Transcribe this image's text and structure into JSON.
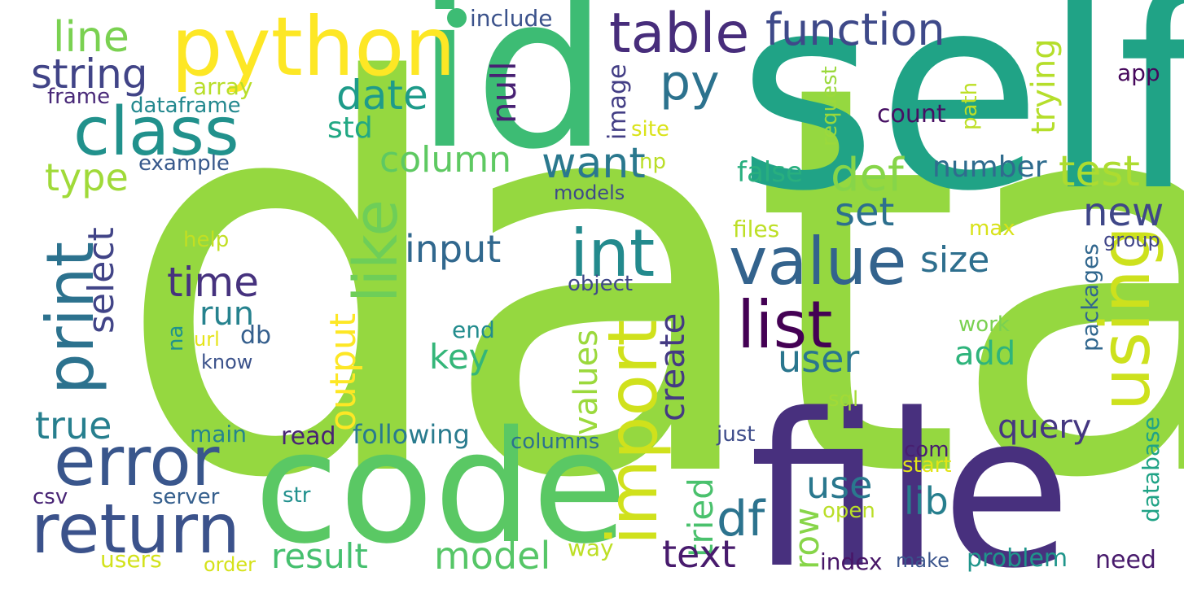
{
  "cloud": {
    "words": [
      {
        "text": "data",
        "color": "#95d840"
      },
      {
        "text": "self",
        "color": "#20a386"
      },
      {
        "text": "file",
        "color": "#48307e"
      },
      {
        "text": "code",
        "color": "#5ac864"
      },
      {
        "text": "id",
        "color": "#3dbc74"
      },
      {
        "text": "python",
        "color": "#fde725"
      },
      {
        "text": "class",
        "color": "#21918c"
      },
      {
        "text": "error",
        "color": "#39568c"
      },
      {
        "text": "return",
        "color": "#3b528b"
      },
      {
        "text": "print",
        "color": "#2c728e"
      },
      {
        "text": "import",
        "color": "#d0e11c"
      },
      {
        "text": "using",
        "color": "#cde11d"
      },
      {
        "text": "value",
        "color": "#33638d"
      },
      {
        "text": "list",
        "color": "#440154"
      },
      {
        "text": "int",
        "color": "#238a8d"
      },
      {
        "text": "like",
        "color": "#6ece58"
      },
      {
        "text": "table",
        "color": "#472d7b"
      },
      {
        "text": "function",
        "color": "#3e4989"
      },
      {
        "text": "line",
        "color": "#7ad151"
      },
      {
        "text": "string",
        "color": "#414487"
      },
      {
        "text": "py",
        "color": "#2c728e"
      },
      {
        "text": "date",
        "color": "#1e9b8a"
      },
      {
        "text": "null",
        "color": "#482173"
      },
      {
        "text": "std",
        "color": "#22a884"
      },
      {
        "text": "type",
        "color": "#a0da39"
      },
      {
        "text": "column",
        "color": "#5ec962"
      },
      {
        "text": "want",
        "color": "#2a788e"
      },
      {
        "text": "def",
        "color": "#86d549"
      },
      {
        "text": "test",
        "color": "#addc30"
      },
      {
        "text": "number",
        "color": "#2f6c8e"
      },
      {
        "text": "trying",
        "color": "#b5de2b"
      },
      {
        "text": "false",
        "color": "#29af7f"
      },
      {
        "text": "set",
        "color": "#2d708e"
      },
      {
        "text": "new",
        "color": "#3f4788"
      },
      {
        "text": "input",
        "color": "#31688e"
      },
      {
        "text": "select",
        "color": "#414487"
      },
      {
        "text": "time",
        "color": "#46327e"
      },
      {
        "text": "run",
        "color": "#26828e"
      },
      {
        "text": "output",
        "color": "#fde725"
      },
      {
        "text": "values",
        "color": "#9bd93c"
      },
      {
        "text": "create",
        "color": "#443a83"
      },
      {
        "text": "size",
        "color": "#2e6f8e"
      },
      {
        "text": "user",
        "color": "#2a768e"
      },
      {
        "text": "key",
        "color": "#34b679"
      },
      {
        "text": "add",
        "color": "#2fb47c"
      },
      {
        "text": "true",
        "color": "#277f8e"
      },
      {
        "text": "query",
        "color": "#453781"
      },
      {
        "text": "tried",
        "color": "#4ac16d"
      },
      {
        "text": "df",
        "color": "#2c738e"
      },
      {
        "text": "row",
        "color": "#87d549"
      },
      {
        "text": "use",
        "color": "#2a788e"
      },
      {
        "text": "lib",
        "color": "#277f8e"
      },
      {
        "text": "result",
        "color": "#46c06f"
      },
      {
        "text": "model",
        "color": "#56c667"
      },
      {
        "text": "text",
        "color": "#481b6d"
      },
      {
        "text": "image",
        "color": "#433e85"
      },
      {
        "text": "request",
        "color": "#9bd93c"
      },
      {
        "text": "path",
        "color": "#bddf26"
      },
      {
        "text": "count",
        "color": "#471063"
      },
      {
        "text": "app",
        "color": "#46085c"
      },
      {
        "text": "include",
        "color": "#3b528b"
      },
      {
        "text": "array",
        "color": "#b8de29"
      },
      {
        "text": "frame",
        "color": "#482878"
      },
      {
        "text": "dataframe",
        "color": "#23888e"
      },
      {
        "text": "site",
        "color": "#dae319"
      },
      {
        "text": "example",
        "color": "#38598c"
      },
      {
        "text": "np",
        "color": "#bade28"
      },
      {
        "text": "models",
        "color": "#3e4a89"
      },
      {
        "text": "files",
        "color": "#bddf26"
      },
      {
        "text": "max",
        "color": "#d8e219"
      },
      {
        "text": "group",
        "color": "#404588"
      },
      {
        "text": "help",
        "color": "#c2df23"
      },
      {
        "text": "packages",
        "color": "#31678e"
      },
      {
        "text": "object",
        "color": "#3f4889"
      },
      {
        "text": "end",
        "color": "#228c8d"
      },
      {
        "text": "work",
        "color": "#7ad151"
      },
      {
        "text": "na",
        "color": "#20928c"
      },
      {
        "text": "url",
        "color": "#e5e419"
      },
      {
        "text": "db",
        "color": "#355f8d"
      },
      {
        "text": "know",
        "color": "#3b528b"
      },
      {
        "text": "sql",
        "color": "#a2da37"
      },
      {
        "text": "database",
        "color": "#20a386"
      },
      {
        "text": "main",
        "color": "#25848e"
      },
      {
        "text": "read",
        "color": "#482374"
      },
      {
        "text": "following",
        "color": "#297b8e"
      },
      {
        "text": "columns",
        "color": "#2c718e"
      },
      {
        "text": "just",
        "color": "#3e4c8a"
      },
      {
        "text": "com",
        "color": "#481f70"
      },
      {
        "text": "start",
        "color": "#e2e418"
      },
      {
        "text": "csv",
        "color": "#482475"
      },
      {
        "text": "server",
        "color": "#355f8d"
      },
      {
        "text": "str",
        "color": "#21908d"
      },
      {
        "text": "open",
        "color": "#bade28"
      },
      {
        "text": "way",
        "color": "#bddf26"
      },
      {
        "text": "users",
        "color": "#d2e21b"
      },
      {
        "text": "order",
        "color": "#d5e21a"
      },
      {
        "text": "index",
        "color": "#481668"
      },
      {
        "text": "make",
        "color": "#3a548c"
      },
      {
        "text": "problem",
        "color": "#1f958b"
      },
      {
        "text": "need",
        "color": "#481a6c"
      }
    ]
  }
}
